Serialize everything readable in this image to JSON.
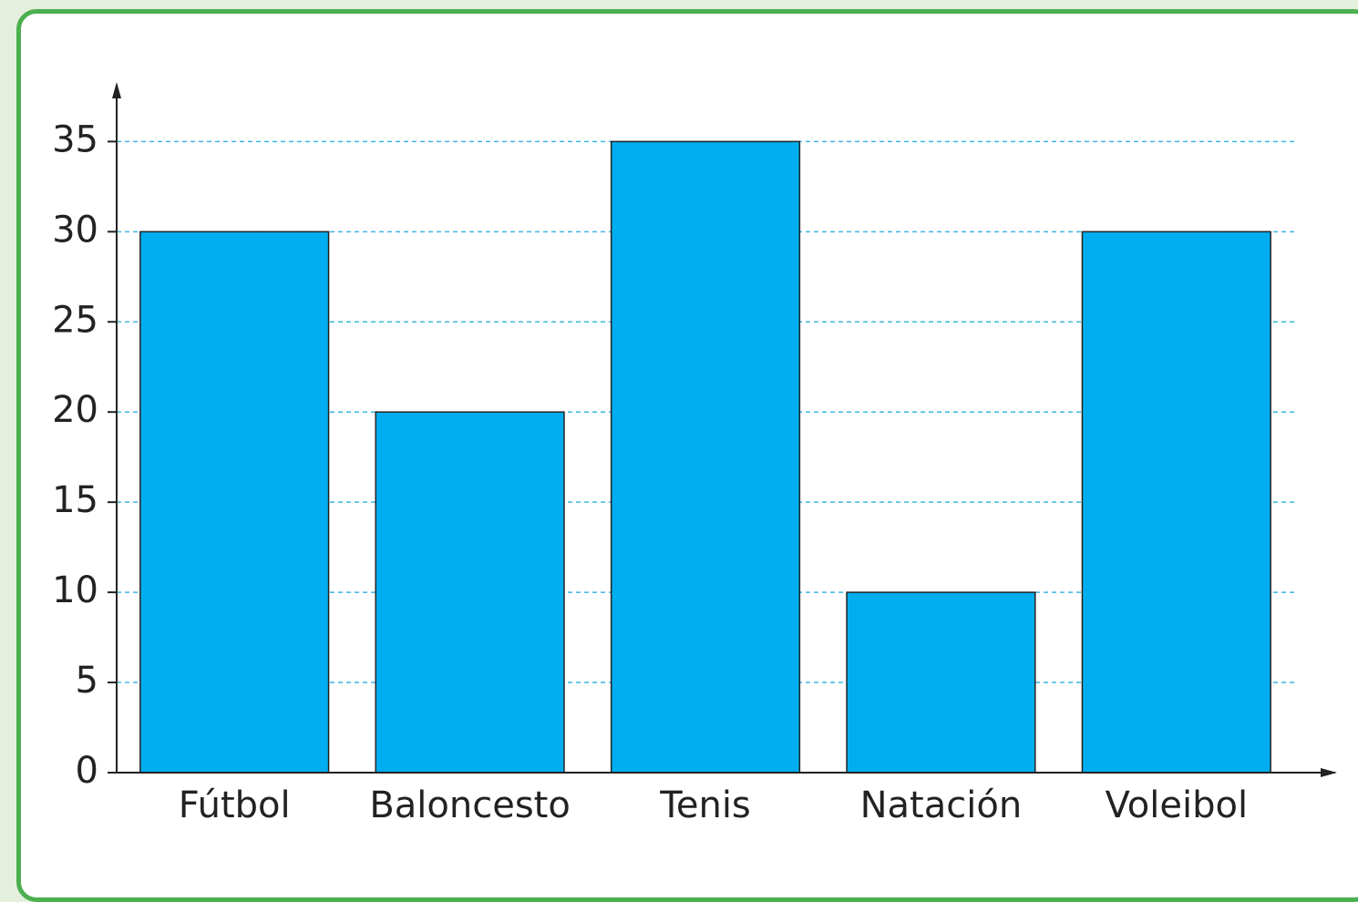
{
  "chart_data": {
    "type": "bar",
    "categories": [
      "Fútbol",
      "Baloncesto",
      "Tenis",
      "Natación",
      "Voleibol"
    ],
    "values": [
      30,
      20,
      35,
      10,
      30
    ],
    "color": "#00aeef",
    "ylim": [
      0,
      38
    ],
    "yticks": [
      0,
      5,
      10,
      15,
      20,
      25,
      30,
      35
    ],
    "grid": true
  }
}
